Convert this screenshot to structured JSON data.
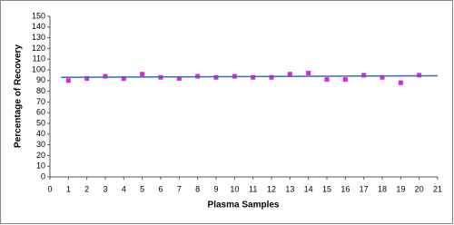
{
  "chart_data": {
    "type": "scatter",
    "x_label": "Plasma Samples",
    "y_label": "Percentage of Recovery",
    "series": [
      {
        "color": "#e020e0",
        "x": [
          1,
          2,
          3,
          4,
          5,
          6,
          7,
          8,
          9,
          10,
          11,
          12,
          13,
          14,
          15,
          16,
          17,
          18,
          19,
          20
        ],
        "values": [
          90,
          92,
          94,
          92,
          96,
          93,
          92,
          94,
          93,
          94,
          93,
          93,
          96,
          97,
          91,
          91,
          95,
          93,
          88,
          95
        ]
      },
      {
        "type": "line",
        "color": "#2f6fc8",
        "x": [
          0.6,
          21
        ],
        "values": [
          93,
          94.5
        ]
      }
    ],
    "xlim": [
      0,
      21
    ],
    "xticks": [
      0,
      1,
      2,
      3,
      4,
      5,
      6,
      7,
      8,
      9,
      10,
      11,
      12,
      13,
      14,
      15,
      16,
      17,
      18,
      19,
      20,
      21
    ],
    "ylim": [
      0,
      150
    ],
    "yticks": [
      0,
      10,
      20,
      30,
      40,
      50,
      60,
      70,
      80,
      90,
      100,
      110,
      120,
      130,
      140,
      150
    ],
    "grid": false
  }
}
